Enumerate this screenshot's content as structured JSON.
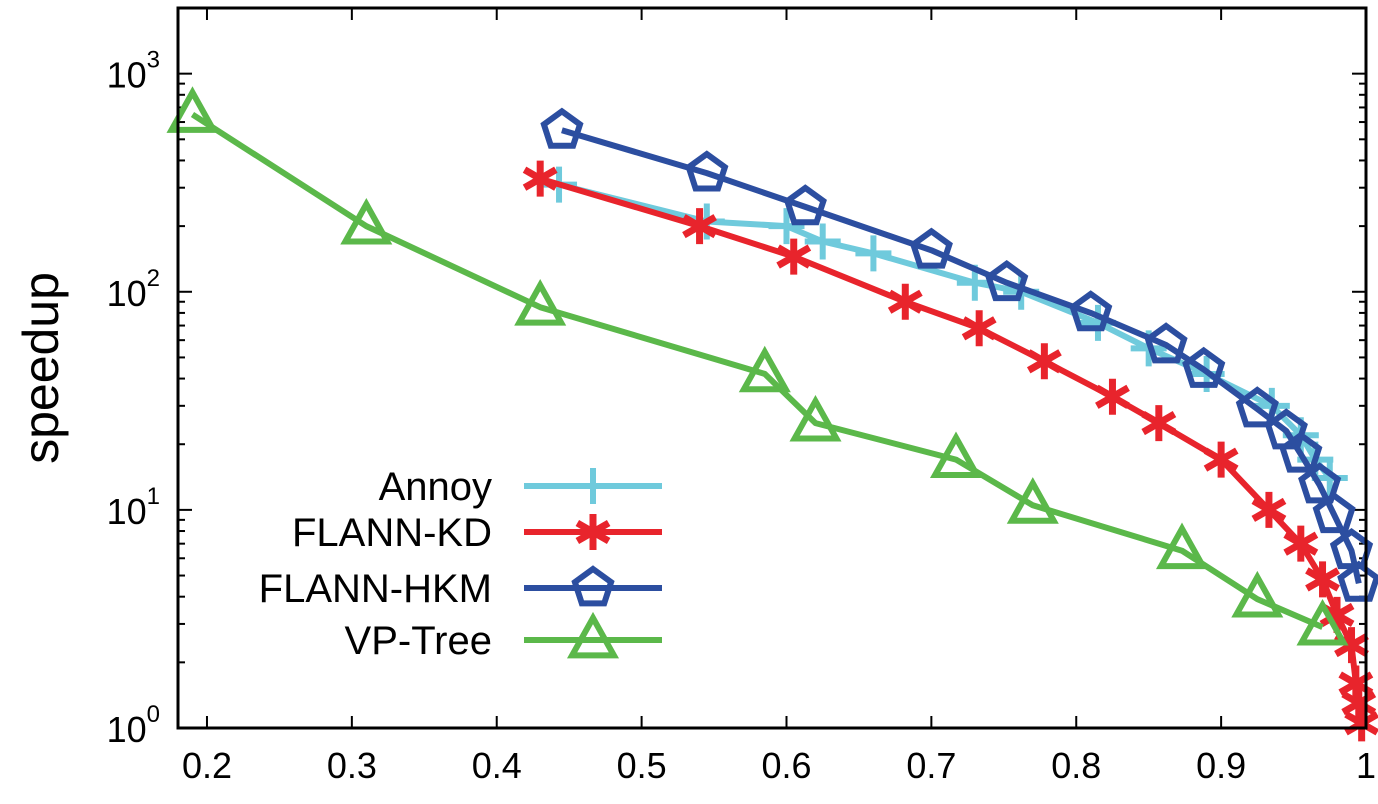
{
  "chart_data": {
    "type": "line",
    "title": "",
    "xlabel": "",
    "ylabel": "speedup",
    "xlim": [
      0.18,
      1.0
    ],
    "ylim": [
      1,
      2000
    ],
    "yscale": "log",
    "grid": false,
    "legend_position": "bottom-left",
    "x_ticks": [
      0.2,
      0.3,
      0.4,
      0.5,
      0.6,
      0.7,
      0.8,
      0.9,
      1
    ],
    "x_tick_labels": [
      "0.2",
      "0.3",
      "0.4",
      "0.5",
      "0.6",
      "0.7",
      "0.8",
      "0.9",
      "1"
    ],
    "y_ticks": [
      {
        "value": 1,
        "base": "10",
        "exp": "0"
      },
      {
        "value": 10,
        "base": "10",
        "exp": "1"
      },
      {
        "value": 100,
        "base": "10",
        "exp": "2"
      },
      {
        "value": 1000,
        "base": "10",
        "exp": "3"
      }
    ],
    "series": [
      {
        "name": "Annoy",
        "color": "#6fcadc",
        "marker": "plus",
        "x": [
          0.443,
          0.545,
          0.6,
          0.625,
          0.66,
          0.73,
          0.762,
          0.815,
          0.85,
          0.89,
          0.935,
          0.955,
          0.965,
          0.975
        ],
        "y": [
          310,
          210,
          200,
          170,
          150,
          110,
          100,
          72,
          55,
          42,
          30,
          22,
          17,
          14
        ]
      },
      {
        "name": "FLANN-KD",
        "color": "#e8242c",
        "marker": "asterisk",
        "x": [
          0.43,
          0.54,
          0.605,
          0.682,
          0.733,
          0.778,
          0.825,
          0.857,
          0.9,
          0.933,
          0.955,
          0.97,
          0.98,
          0.99,
          0.993,
          0.995,
          0.997
        ],
        "y": [
          330,
          200,
          145,
          90,
          68,
          48,
          33,
          25,
          17,
          10,
          7,
          4.8,
          3.3,
          2.4,
          1.6,
          1.3,
          1.05
        ]
      },
      {
        "name": "FLANN-HKM",
        "color": "#2c4ea0",
        "marker": "pentagon",
        "x": [
          0.445,
          0.545,
          0.613,
          0.7,
          0.752,
          0.81,
          0.862,
          0.888,
          0.925,
          0.945,
          0.955,
          0.968,
          0.978,
          0.99,
          0.995
        ],
        "y": [
          550,
          350,
          245,
          155,
          110,
          80,
          57,
          44,
          29,
          23,
          18,
          13,
          9.5,
          6.5,
          4.6
        ]
      },
      {
        "name": "VP-Tree",
        "color": "#5bb84a",
        "marker": "triangle",
        "x": [
          0.19,
          0.31,
          0.43,
          0.585,
          0.62,
          0.717,
          0.77,
          0.873,
          0.925,
          0.97
        ],
        "y": [
          650,
          200,
          85,
          42,
          25,
          17,
          10.5,
          6.5,
          3.9,
          2.9
        ]
      }
    ]
  }
}
